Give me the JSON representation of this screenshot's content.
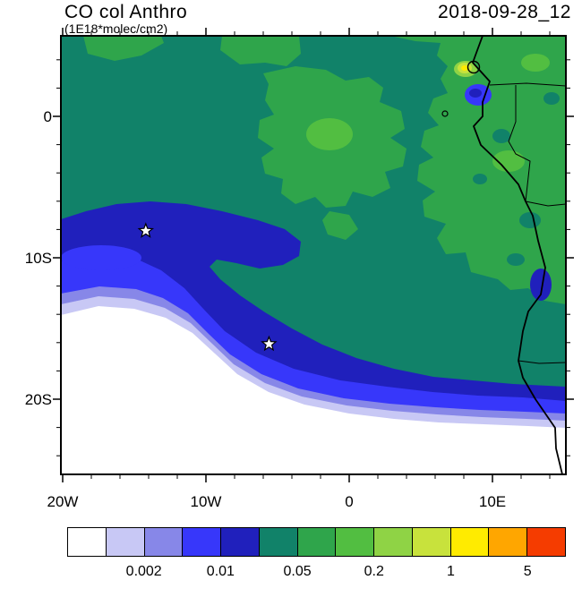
{
  "header": {
    "title": "CO col Anthro",
    "subtitle": "(1E18*molec/cm2)",
    "datetime": "2018-09-28_12"
  },
  "chart_data": {
    "type": "heatmap",
    "title": "CO col Anthro",
    "units_label": "(1E18*molec/cm2)",
    "datetime": "2018-09-28_12",
    "projection": "lat/lon map of the South-East Atlantic and western Southern Africa",
    "extent": {
      "lon_min": -20,
      "lon_max": 15.1,
      "lat_min": -25.3,
      "lat_max": 5.6
    },
    "x_ticks": [
      {
        "label": "20W",
        "lon": -20
      },
      {
        "label": "10W",
        "lon": -10
      },
      {
        "label": "0",
        "lon": 0
      },
      {
        "label": "10E",
        "lon": 10
      }
    ],
    "y_ticks": [
      {
        "label": "0",
        "lat": 0
      },
      {
        "label": "10S",
        "lat": -10
      },
      {
        "label": "20S",
        "lat": -20
      }
    ],
    "minor_tick_deg": 2,
    "colorbar": {
      "levels": [
        0.001,
        0.002,
        0.005,
        0.01,
        0.02,
        0.05,
        0.1,
        0.2,
        0.5,
        1,
        2,
        5
      ],
      "tick_labels": [
        "0.002",
        "0.01",
        "0.05",
        "0.2",
        "1",
        "5"
      ],
      "labeled_boundary_indices": [
        2,
        4,
        6,
        8,
        10,
        12
      ],
      "colors": [
        "#FFFFFF",
        "#C8C8F5",
        "#8787E8",
        "#3737FA",
        "#2020BC",
        "#118269",
        "#2FA54B",
        "#52BE41",
        "#8FD345",
        "#C8E23C",
        "#FFEB00",
        "#FFA600",
        "#F53C00"
      ]
    },
    "markers": [
      {
        "symbol": "star",
        "lon": -14.2,
        "lat": -8.1
      },
      {
        "symbol": "star",
        "lon": -5.6,
        "lat": -16.1
      }
    ],
    "field_summary": [
      {
        "region": "south-west open Atlantic (bottom-left wedge along bottom of domain)",
        "value_1e18": "< 0.002"
      },
      {
        "region": "concentric bands around the low: lavender/purple/blue rings",
        "value_1e18": "0.001 - 0.02"
      },
      {
        "region": "dark-blue hooked band sweeping from ~14W,8S down to the Namibian coast",
        "value_1e18": "0.01 - 0.02"
      },
      {
        "region": "background ocean (teal)",
        "value_1e18": "0.02 - 0.05"
      },
      {
        "region": "central Gulf-of-Guinea outflow plume and most of continental Africa (green)",
        "value_1e18": "0.05 - 0.2"
      },
      {
        "region": "hotspot near the Cameroon/Gabon coast (yellow core)",
        "value_1e18": "0.5 - 2"
      }
    ]
  }
}
